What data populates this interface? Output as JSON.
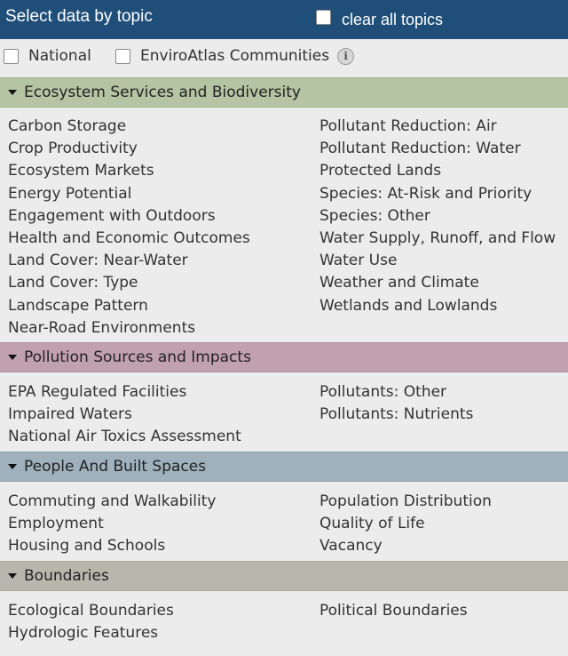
{
  "header": {
    "title": "Select data by topic",
    "clear_label": "clear all topics"
  },
  "filters": {
    "national_label": "National",
    "communities_label": "EnviroAtlas Communities",
    "info_glyph": "i"
  },
  "sections": [
    {
      "title": "Ecosystem Services and Biodiversity",
      "color": "#b5c4a2",
      "left": [
        "Carbon Storage",
        "Crop Productivity",
        "Ecosystem Markets",
        "Energy Potential",
        "Engagement with Outdoors",
        "Health and Economic Outcomes",
        "Land Cover: Near-Water",
        "Land Cover: Type",
        "Landscape Pattern",
        "Near-Road Environments"
      ],
      "right": [
        "Pollutant Reduction: Air",
        "Pollutant Reduction: Water",
        "Protected Lands",
        "Species: At-Risk and Priority",
        "Species: Other",
        "Water Supply, Runoff, and Flow",
        "Water Use",
        "Weather and Climate",
        "Wetlands and Lowlands"
      ]
    },
    {
      "title": "Pollution Sources and Impacts",
      "color": "#c1a0b0",
      "left": [
        "EPA Regulated Facilities",
        "Impaired Waters",
        "National Air Toxics Assessment"
      ],
      "right": [
        "Pollutants: Other",
        "Pollutants: Nutrients"
      ]
    },
    {
      "title": "People And Built Spaces",
      "color": "#9fb1bd",
      "left": [
        "Commuting and Walkability",
        "Employment",
        "Housing and Schools"
      ],
      "right": [
        "Population Distribution",
        "Quality of Life",
        "Vacancy"
      ]
    },
    {
      "title": "Boundaries",
      "color": "#b9b7ad",
      "left": [
        "Ecological Boundaries",
        "Hydrologic Features"
      ],
      "right": [
        "Political Boundaries"
      ]
    }
  ]
}
